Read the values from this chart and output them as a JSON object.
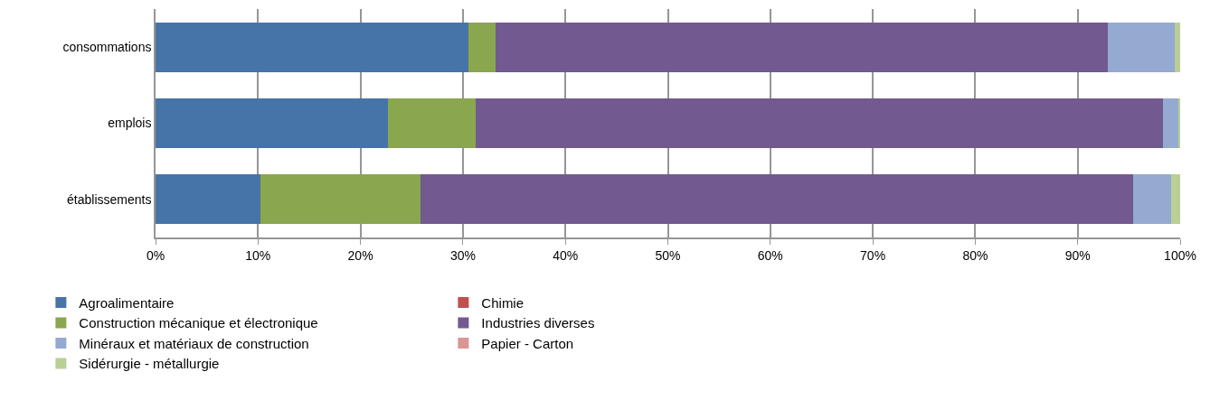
{
  "chart_data": {
    "type": "bar",
    "orientation": "horizontal",
    "stacked": true,
    "categories": [
      "consommations",
      "emplois",
      "établissements"
    ],
    "series": [
      {
        "name": "Agroalimentaire",
        "color": "#4674a8",
        "values": [
          30.5,
          22.7,
          10.2
        ]
      },
      {
        "name": "Chimie",
        "color": "#c0504d",
        "values": [
          0,
          0,
          0
        ]
      },
      {
        "name": "Construction mécanique et électronique",
        "color": "#8aa64e",
        "values": [
          2.7,
          8.5,
          15.7
        ]
      },
      {
        "name": "Industries diverses",
        "color": "#725990",
        "values": [
          59.7,
          67.1,
          69.5
        ]
      },
      {
        "name": "Minéraux et matériaux de construction",
        "color": "#95aad0",
        "values": [
          6.6,
          1.5,
          3.7
        ]
      },
      {
        "name": "Papier - Carton",
        "color": "#d99694",
        "values": [
          0,
          0,
          0
        ]
      },
      {
        "name": "Sidérurgie - métallurgie",
        "color": "#b9cf95",
        "values": [
          0.5,
          0.2,
          0.9
        ]
      }
    ],
    "xlim": [
      0,
      100
    ],
    "xticks": [
      {
        "value": 0,
        "label": "0%"
      },
      {
        "value": 10,
        "label": "10%"
      },
      {
        "value": 20,
        "label": "20%"
      },
      {
        "value": 30,
        "label": "30%"
      },
      {
        "value": 40,
        "label": "40%"
      },
      {
        "value": 50,
        "label": "50%"
      },
      {
        "value": 60,
        "label": "60%"
      },
      {
        "value": 70,
        "label": "70%"
      },
      {
        "value": 80,
        "label": "80%"
      },
      {
        "value": 90,
        "label": "90%"
      },
      {
        "value": 100,
        "label": "100%"
      }
    ],
    "grid": "x",
    "legend": "bottom"
  }
}
